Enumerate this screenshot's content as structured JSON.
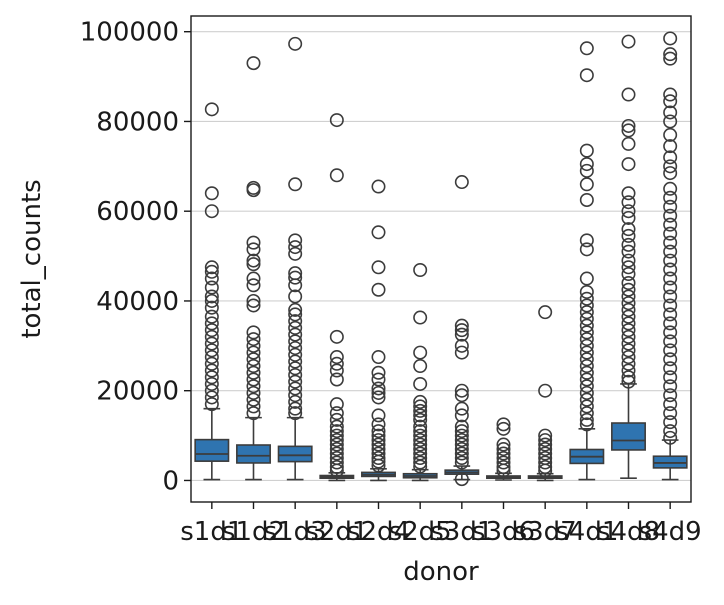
{
  "chart_data": {
    "type": "box",
    "title": "",
    "xlabel": "donor",
    "ylabel": "total_counts",
    "ylim": [
      -4800,
      103500
    ],
    "yticks": [
      0,
      20000,
      40000,
      60000,
      80000,
      100000
    ],
    "ytick_labels": [
      "0",
      "20000",
      "40000",
      "60000",
      "80000",
      "100000"
    ],
    "grid": "horizontal",
    "box_color": "#2f74b0",
    "categories": [
      "s1d1",
      "s1d2",
      "s1d3",
      "s2d1",
      "s2d4",
      "s2d5",
      "s3d1",
      "s3d6",
      "s3d7",
      "s4d1",
      "s4d8",
      "s4d9"
    ],
    "boxes": [
      {
        "q1": 4300,
        "median": 5900,
        "q3": 9100,
        "whisker_low": 200,
        "whisker_high": 16000,
        "outliers": [
          82700,
          64000,
          60000,
          47500,
          46500,
          45000,
          43000,
          41000,
          40000,
          38500,
          36500,
          35000,
          33500,
          32000,
          30500,
          29000,
          27500,
          26000,
          24500,
          23000,
          21500,
          20000,
          18500,
          17000
        ]
      },
      {
        "q1": 3900,
        "median": 5500,
        "q3": 7900,
        "whisker_low": 200,
        "whisker_high": 14000,
        "outliers": [
          93000,
          65200,
          64700,
          53000,
          51500,
          49000,
          48200,
          45000,
          43500,
          40000,
          39000,
          33000,
          31500,
          30000,
          28500,
          27000,
          25500,
          24000,
          22500,
          21000,
          19500,
          18000,
          16500,
          15000
        ]
      },
      {
        "q1": 4200,
        "median": 5600,
        "q3": 7600,
        "whisker_low": 200,
        "whisker_high": 14000,
        "outliers": [
          97300,
          66000,
          53500,
          52000,
          50500,
          46200,
          45200,
          43500,
          41000,
          38000,
          37000,
          35500,
          34000,
          32500,
          31000,
          29500,
          28000,
          26500,
          25000,
          23500,
          22000,
          20500,
          19000,
          17500,
          16000,
          15000
        ]
      },
      {
        "q1": 500,
        "median": 800,
        "q3": 1100,
        "whisker_low": 0,
        "whisker_high": 1700,
        "outliers": [
          80300,
          68000,
          32000,
          27500,
          26000,
          24500,
          22500,
          17000,
          15000,
          13500,
          12000,
          11000,
          10000,
          9000,
          8000,
          7000,
          6000,
          5000,
          4000,
          3000,
          2200
        ]
      },
      {
        "q1": 900,
        "median": 1300,
        "q3": 1800,
        "whisker_low": 0,
        "whisker_high": 2600,
        "outliers": [
          65500,
          55300,
          47500,
          42500,
          27500,
          24000,
          22500,
          20500,
          19500,
          18500,
          14500,
          12500,
          11000,
          10000,
          9000,
          8000,
          7000,
          6000,
          5000,
          4200,
          3300
        ]
      },
      {
        "q1": 600,
        "median": 1000,
        "q3": 1500,
        "whisker_low": 0,
        "whisker_high": 2400,
        "outliers": [
          46900,
          36300,
          28500,
          25500,
          21500,
          17500,
          16500,
          15500,
          14500,
          13500,
          12000,
          11000,
          10000,
          9000,
          8000,
          7000,
          6000,
          5000,
          4000,
          3100
        ]
      },
      {
        "q1": 1400,
        "median": 1800,
        "q3": 2300,
        "whisker_low": 200,
        "whisker_high": 3200,
        "outliers": [
          66500,
          34500,
          33500,
          32500,
          30000,
          28500,
          20000,
          19000,
          16000,
          14500,
          12000,
          11000,
          10000,
          9000,
          8000,
          7000,
          6000,
          5000,
          4000,
          300
        ]
      },
      {
        "q1": 500,
        "median": 800,
        "q3": 1000,
        "whisker_low": 100,
        "whisker_high": 1600,
        "outliers": [
          12500,
          11500,
          8000,
          7000,
          6000,
          5000,
          4000,
          3000,
          2200
        ]
      },
      {
        "q1": 500,
        "median": 700,
        "q3": 1000,
        "whisker_low": 0,
        "whisker_high": 1500,
        "outliers": [
          37500,
          20000,
          10000,
          9000,
          8000,
          7000,
          6000,
          5000,
          4000,
          3000,
          2200
        ]
      },
      {
        "q1": 3800,
        "median": 5300,
        "q3": 6900,
        "whisker_low": 200,
        "whisker_high": 11500,
        "outliers": [
          96300,
          90300,
          73500,
          70500,
          69000,
          66000,
          62500,
          53500,
          51500,
          45000,
          42000,
          40500,
          39000,
          37500,
          36000,
          34500,
          33000,
          31500,
          30000,
          28500,
          27000,
          25500,
          24000,
          22500,
          21000,
          19500,
          18000,
          16500,
          15000,
          13500,
          12500
        ]
      },
      {
        "q1": 6800,
        "median": 8900,
        "q3": 12800,
        "whisker_low": 500,
        "whisker_high": 21500,
        "outliers": [
          97800,
          86000,
          79000,
          78000,
          75000,
          70500,
          64000,
          62000,
          60000,
          58500,
          56000,
          54500,
          52500,
          51000,
          49000,
          47500,
          46000,
          44000,
          42500,
          41000,
          39500,
          38000,
          36500,
          35000,
          33500,
          32000,
          30500,
          29000,
          27500,
          26000,
          24500,
          23000,
          22000
        ]
      },
      {
        "q1": 2800,
        "median": 3900,
        "q3": 5400,
        "whisker_low": 200,
        "whisker_high": 9000,
        "outliers": [
          98500,
          95000,
          94000,
          86000,
          84500,
          82000,
          80000,
          77000,
          74500,
          72000,
          70000,
          68500,
          65000,
          63000,
          61000,
          59000,
          57000,
          55000,
          53000,
          51000,
          49000,
          47000,
          45000,
          43000,
          41000,
          39000,
          37000,
          35000,
          33000,
          31000,
          29000,
          27000,
          25000,
          23000,
          21000,
          19000,
          17000,
          15000,
          13000,
          11000,
          9500
        ]
      }
    ]
  }
}
